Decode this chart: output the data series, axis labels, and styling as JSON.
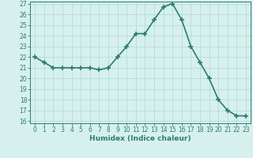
{
  "x": [
    0,
    1,
    2,
    3,
    4,
    5,
    6,
    7,
    8,
    9,
    10,
    11,
    12,
    13,
    14,
    15,
    16,
    17,
    18,
    19,
    20,
    21,
    22,
    23
  ],
  "y": [
    22.0,
    21.5,
    21.0,
    21.0,
    21.0,
    21.0,
    21.0,
    20.8,
    21.0,
    22.0,
    23.0,
    24.2,
    24.2,
    25.5,
    26.7,
    27.0,
    25.5,
    23.0,
    21.5,
    20.0,
    18.0,
    17.0,
    16.5,
    16.5
  ],
  "xlabel": "Humidex (Indice chaleur)",
  "ylim_min": 16,
  "ylim_max": 27,
  "xlim_min": -0.5,
  "xlim_max": 23.5,
  "yticks": [
    16,
    17,
    18,
    19,
    20,
    21,
    22,
    23,
    24,
    25,
    26,
    27
  ],
  "xticks": [
    0,
    1,
    2,
    3,
    4,
    5,
    6,
    7,
    8,
    9,
    10,
    11,
    12,
    13,
    14,
    15,
    16,
    17,
    18,
    19,
    20,
    21,
    22,
    23
  ],
  "line_color": "#2e7d6e",
  "marker": "+",
  "marker_size": 4,
  "marker_linewidth": 1.2,
  "line_width": 1.2,
  "background_color": "#d6f0ed",
  "grid_color": "#b0d8d4",
  "tick_fontsize": 5.5,
  "xlabel_fontsize": 6.5
}
